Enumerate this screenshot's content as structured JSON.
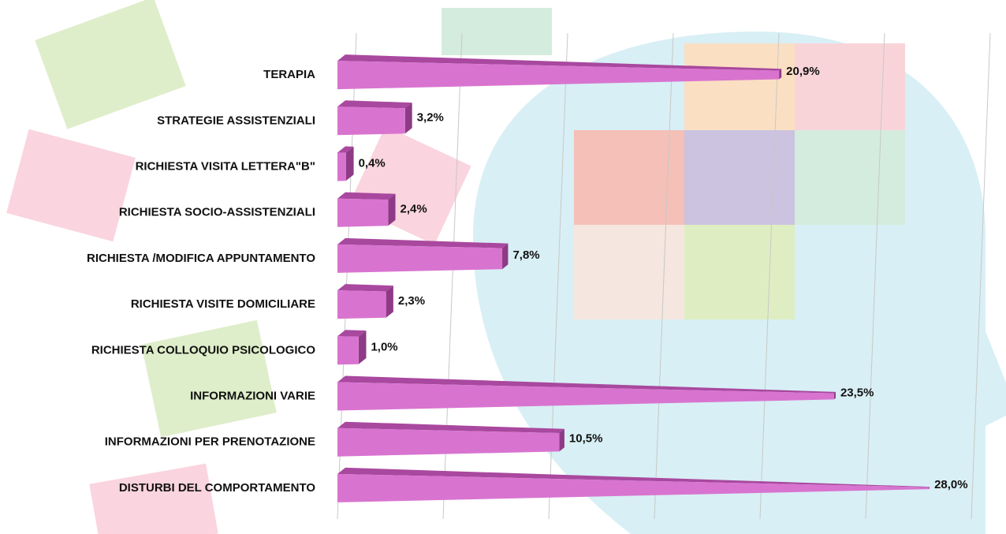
{
  "chart_data": {
    "type": "bar",
    "orientation": "horizontal",
    "categories": [
      "TERAPIA",
      "STRATEGIE ASSISTENZIALI",
      "RICHIESTA VISITA LETTERA\"B\"",
      "RICHIESTA SOCIO-ASSISTENZIALI",
      "RICHIESTA /MODIFICA APPUNTAMENTO",
      "RICHIESTA VISITE DOMICILIARE",
      "RICHIESTA COLLOQUIO PSICOLOGICO",
      "INFORMAZIONI VARIE",
      "INFORMAZIONI PER PRENOTAZIONE",
      "DISTURBI DEL COMPORTAMENTO"
    ],
    "values": [
      20.9,
      3.2,
      0.4,
      2.4,
      7.8,
      2.3,
      1.0,
      23.5,
      10.5,
      28.0
    ],
    "value_labels": [
      "20,9%",
      "3,2%",
      "0,4%",
      "2,4%",
      "7,8%",
      "2,3%",
      "1,0%",
      "23,5%",
      "10,5%",
      "28,0%"
    ],
    "color": "#d874d0",
    "xlim": [
      0,
      30
    ],
    "xticks": [
      0,
      5,
      10,
      15,
      20,
      25,
      30
    ],
    "grid": true
  }
}
